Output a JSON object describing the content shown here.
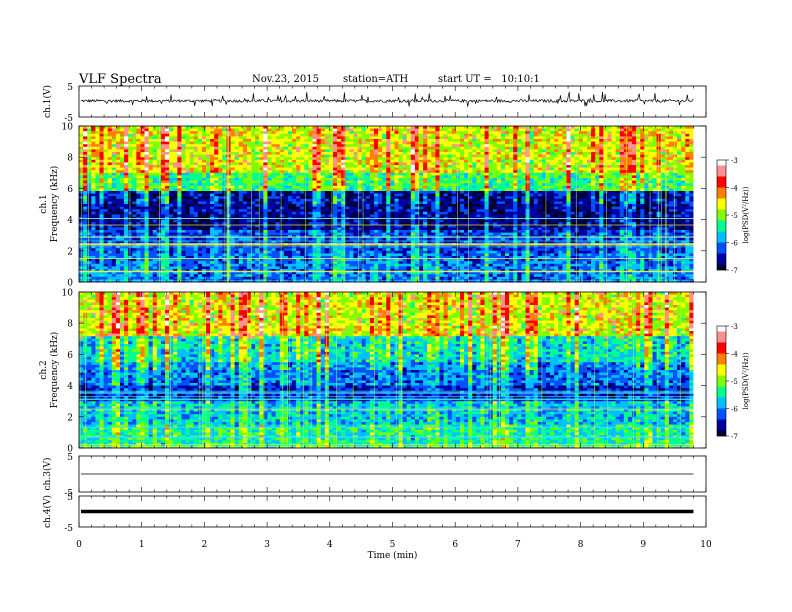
{
  "header": {
    "title": "VLF Spectra",
    "date": "Nov.23, 2015",
    "station": "station=ATH",
    "start": "start UT =   10:10:1"
  },
  "colors": {
    "colormap": [
      "#000030",
      "#0000a0",
      "#0050ff",
      "#00c0ff",
      "#00ff90",
      "#80ff00",
      "#ffff00",
      "#ff8000",
      "#ff0000",
      "#ff9090",
      "#ffffff"
    ]
  },
  "chart_data": [
    {
      "type": "line",
      "panel": "ch1-waveform",
      "ylabel": "ch.1(V)",
      "ylim": [
        -5,
        5
      ],
      "y_ticks": [
        "5",
        "-5"
      ],
      "description_series": "noisy waveform near 0 V with frequent spikes up to about 1-2 V",
      "baseline_v": 0.2,
      "spike_amplitude_v": 2
    },
    {
      "type": "heatmap",
      "panel": "ch1-spectrogram",
      "ylabel": "ch.1\nFrequency (kHz)",
      "ylabel_line1": "ch.1",
      "ylabel_line2": "Frequency (kHz)",
      "ylim": [
        0,
        10
      ],
      "y_ticks": [
        "0",
        "2",
        "4",
        "6",
        "8",
        "10"
      ],
      "xlim": [
        0,
        9.8
      ],
      "colorbar": {
        "label": "log(PSD(V²/Hz))",
        "ticks": [
          "-3",
          "-4",
          "-5",
          "-6",
          "-7"
        ],
        "range": [
          -7,
          -3
        ]
      },
      "bands_khz": [
        {
          "from": 0,
          "to": 1.8,
          "level": -6.2
        },
        {
          "from": 1.8,
          "to": 3.3,
          "level": -6.4
        },
        {
          "from": 3.3,
          "to": 5.8,
          "level": -6.8
        },
        {
          "from": 5.8,
          "to": 7.0,
          "level": -5.5
        },
        {
          "from": 7.0,
          "to": 10,
          "level": -4.9
        }
      ]
    },
    {
      "type": "heatmap",
      "panel": "ch2-spectrogram",
      "ylabel": "ch.2\nFrequency (kHz)",
      "ylabel_line1": "ch.2",
      "ylabel_line2": "Frequency (kHz)",
      "ylim": [
        0,
        10
      ],
      "y_ticks": [
        "0",
        "2",
        "4",
        "6",
        "8",
        "10"
      ],
      "xlim": [
        0,
        9.8
      ],
      "colorbar": {
        "label": "log(PSD(V²/Hz))",
        "ticks": [
          "-3",
          "-4",
          "-5",
          "-6",
          "-7"
        ],
        "range": [
          -7,
          -3
        ]
      },
      "bands_khz": [
        {
          "from": 0,
          "to": 1.5,
          "level": -5.6
        },
        {
          "from": 1.5,
          "to": 3.0,
          "level": -5.9
        },
        {
          "from": 3.0,
          "to": 4.0,
          "level": -6.6
        },
        {
          "from": 4.0,
          "to": 5.5,
          "level": -6.2
        },
        {
          "from": 5.5,
          "to": 7.2,
          "level": -5.8
        },
        {
          "from": 7.2,
          "to": 10,
          "level": -4.9
        }
      ]
    },
    {
      "type": "line",
      "panel": "ch3-waveform",
      "ylabel": "ch.3(V)",
      "ylim": [
        -5,
        5
      ],
      "y_ticks": [
        "5",
        "-5"
      ],
      "baseline_v": 0
    },
    {
      "type": "line",
      "panel": "ch4-waveform",
      "ylabel": "ch.4(V)",
      "ylim": [
        -5,
        5
      ],
      "y_ticks": [
        "5",
        "-5"
      ],
      "baseline_v": 0
    }
  ],
  "x_axis": {
    "xlabel": "Time (min)",
    "ticks": [
      "0",
      "1",
      "2",
      "3",
      "4",
      "5",
      "6",
      "7",
      "8",
      "9",
      "10"
    ],
    "xlim": [
      0,
      10
    ],
    "data_end": 9.8
  }
}
